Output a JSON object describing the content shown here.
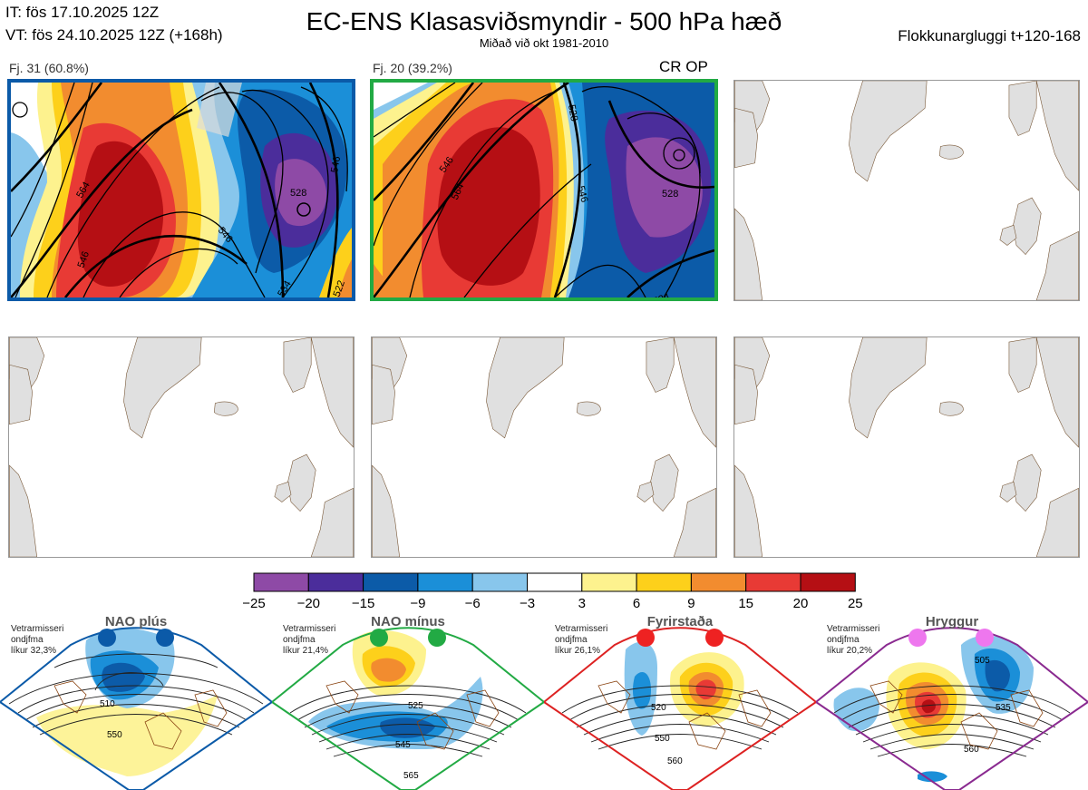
{
  "header": {
    "it": "IT: fös 17.10.2025 12Z",
    "vt": "VT: fös 24.10.2025 12Z  (+168h)",
    "title": "EC-ENS Klasasviðsmyndir - 500 hPa hæð",
    "subtitle": "Miðað við okt 1981-2010",
    "cluster_window": "Flokkunargluggi t+120-168"
  },
  "clusters": [
    {
      "label": "Fj. 31 (60.8%)",
      "members": 31,
      "percent": 60.8,
      "border_color": "#0b5aa8",
      "contours": [
        "546",
        "564",
        "546",
        "528",
        "546",
        "534",
        "522"
      ]
    },
    {
      "label": "Fj. 20 (39.2%)",
      "members": 20,
      "percent": 39.2,
      "border_color": "#22aa44",
      "contours": [
        "528",
        "546",
        "564",
        "546",
        "528",
        "534"
      ]
    }
  ],
  "op_marker": "CR OP",
  "colorbar": {
    "ticks": [
      "−25",
      "−20",
      "−15",
      "−9",
      "−6",
      "−3",
      "3",
      "6",
      "9",
      "15",
      "20",
      "25"
    ],
    "colors": [
      "#8e4aa6",
      "#4b2d9b",
      "#0c5ba8",
      "#1b8fd8",
      "#88c6ec",
      "#ffffff",
      "#fdf28e",
      "#fdd01b",
      "#f28c2f",
      "#e83a35",
      "#b50f14"
    ]
  },
  "regimes": [
    {
      "name": "NAO plús",
      "note": [
        "Vetrarmisseri",
        "ondjfma",
        "líkur 32,3%"
      ],
      "color": "#0b5aa8",
      "dot_color": "#0b5aa8",
      "contours": [
        "510",
        "550"
      ]
    },
    {
      "name": "NAO mínus",
      "note": [
        "Vetrarmisseri",
        "ondjfma",
        "líkur 21,4%"
      ],
      "color": "#22aa44",
      "dot_color": "#22aa44",
      "contours": [
        "525",
        "545",
        "565"
      ]
    },
    {
      "name": "Fyrirstaða",
      "note": [
        "Vetrarmisseri",
        "ondjfma",
        "líkur 26,1%"
      ],
      "color": "#dd2222",
      "dot_color": "#ee2222",
      "contours": [
        "520",
        "550",
        "560"
      ]
    },
    {
      "name": "Hryggur",
      "note": [
        "Vetrarmisseri",
        "ondjfma",
        "líkur 20,2%"
      ],
      "color": "#8a2a90",
      "dot_color": "#ee77ee",
      "contours": [
        "505",
        "535",
        "560"
      ]
    }
  ]
}
